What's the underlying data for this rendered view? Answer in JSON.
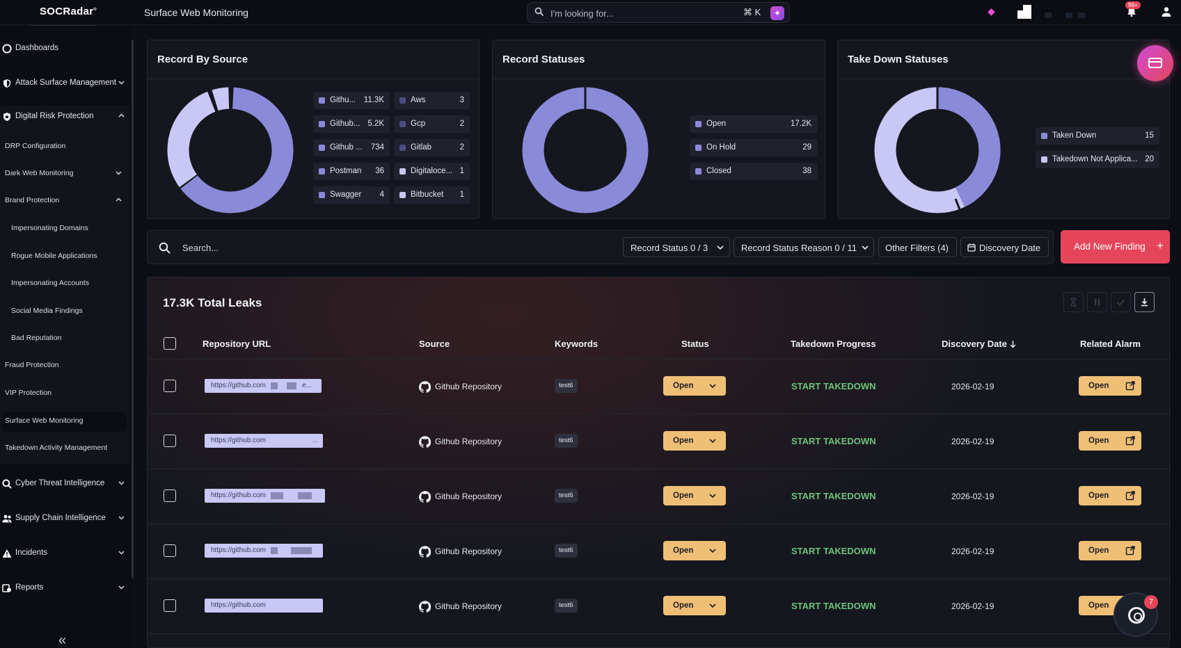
{
  "app": {
    "logo": "SOCRadar",
    "page_title": "Surface Web Monitoring"
  },
  "topbar": {
    "search_placeholder": "I'm looking for...",
    "shortcut": "⌘ K",
    "notifications_badge": "99+"
  },
  "sidebar": {
    "items": [
      {
        "label": "Dashboards",
        "icon": "dashboard-icon"
      },
      {
        "label": "Attack Surface Management",
        "icon": "shield-icon"
      },
      {
        "label": "Digital Risk Protection",
        "icon": "shield-lock-icon"
      },
      {
        "label": "Cyber Threat Intelligence",
        "icon": "search-threat-icon"
      },
      {
        "label": "Supply Chain Intelligence",
        "icon": "people-icon"
      },
      {
        "label": "Incidents",
        "icon": "warning-icon"
      },
      {
        "label": "Reports",
        "icon": "reports-icon"
      }
    ],
    "drp_sub": {
      "drp_configuration": "DRP Configuration",
      "dark_web_monitoring": "Dark Web Monitoring",
      "brand_protection": "Brand Protection",
      "brand_sub": [
        "Impersonating Domains",
        "Rogue Mobile Applications",
        "Impersonating Accounts",
        "Social Media Findings",
        "Bad Reputation"
      ],
      "fraud_protection": "Fraud Protection",
      "vip_protection": "VIP Protection",
      "surface_web_monitoring": "Surface Web Monitoring",
      "takedown_activity": "Takedown Activity Management"
    }
  },
  "cards": {
    "record_by_source": {
      "title": "Record By Source",
      "legend_left": [
        {
          "name": "Githu...",
          "value": "11.3K"
        },
        {
          "name": "Github...",
          "value": "5.2K"
        },
        {
          "name": "Github ...",
          "value": "734"
        },
        {
          "name": "Postman",
          "value": "36"
        },
        {
          "name": "Swagger",
          "value": "4"
        }
      ],
      "legend_right": [
        {
          "name": "Aws",
          "value": "3"
        },
        {
          "name": "Gcp",
          "value": "2"
        },
        {
          "name": "Gitlab",
          "value": "2"
        },
        {
          "name": "Digitaloce...",
          "value": "1"
        },
        {
          "name": "Bitbucket",
          "value": "1"
        }
      ]
    },
    "record_statuses": {
      "title": "Record Statuses",
      "legend": [
        {
          "name": "Open",
          "value": "17.2K"
        },
        {
          "name": "On Hold",
          "value": "29"
        },
        {
          "name": "Closed",
          "value": "38"
        }
      ]
    },
    "take_down_statuses": {
      "title": "Take Down Statuses",
      "legend": [
        {
          "name": "Taken Down",
          "value": "15"
        },
        {
          "name": "Takedown Not Applica...",
          "value": "20"
        }
      ]
    }
  },
  "colors": {
    "accent": "#e5455a",
    "donut_dark": "#8a8ad9",
    "donut_light": "#c9c7f4",
    "status_bg": "#f0bf76",
    "takedown_green": "#6dc27d"
  },
  "filters": {
    "search_placeholder": "Search...",
    "record_status": "Record Status  0 / 3",
    "record_status_reason": "Record Status Reason  0 / 11",
    "other_filters": "Other Filters  (4)",
    "discovery_date": "Discovery Date",
    "add_new_finding": "Add New Finding",
    "add_plus": "+"
  },
  "table": {
    "total": "17.3K Total Leaks",
    "headers": {
      "repository_url": "Repository URL",
      "source": "Source",
      "keywords": "Keywords",
      "status": "Status",
      "takedown_progress": "Takedown Progress",
      "discovery_date": "Discovery Date",
      "related_alarm": "Related Alarm"
    },
    "rows": [
      {
        "url": "https://github.com",
        "suffix": "e...",
        "source": "Github Repository",
        "keyword": "test6",
        "status": "Open",
        "takedown": "START TAKEDOWN",
        "date": "2026-02-19",
        "alarm": "Open"
      },
      {
        "url": "https://github.com",
        "suffix": "...",
        "source": "Github Repository",
        "keyword": "test6",
        "status": "Open",
        "takedown": "START TAKEDOWN",
        "date": "2026-02-19",
        "alarm": "Open"
      },
      {
        "url": "https://github.com",
        "suffix": "",
        "source": "Github Repository",
        "keyword": "test6",
        "status": "Open",
        "takedown": "START TAKEDOWN",
        "date": "2026-02-19",
        "alarm": "Open"
      },
      {
        "url": "https://github.com",
        "suffix": "",
        "source": "Github Repository",
        "keyword": "test6",
        "status": "Open",
        "takedown": "START TAKEDOWN",
        "date": "2026-02-19",
        "alarm": "Open"
      },
      {
        "url": "https://github.com",
        "suffix": "",
        "source": "Github Repository",
        "keyword": "test6",
        "status": "Open",
        "takedown": "START TAKEDOWN",
        "date": "2026-02-19",
        "alarm": "Open"
      }
    ]
  },
  "helper_badge": "7"
}
